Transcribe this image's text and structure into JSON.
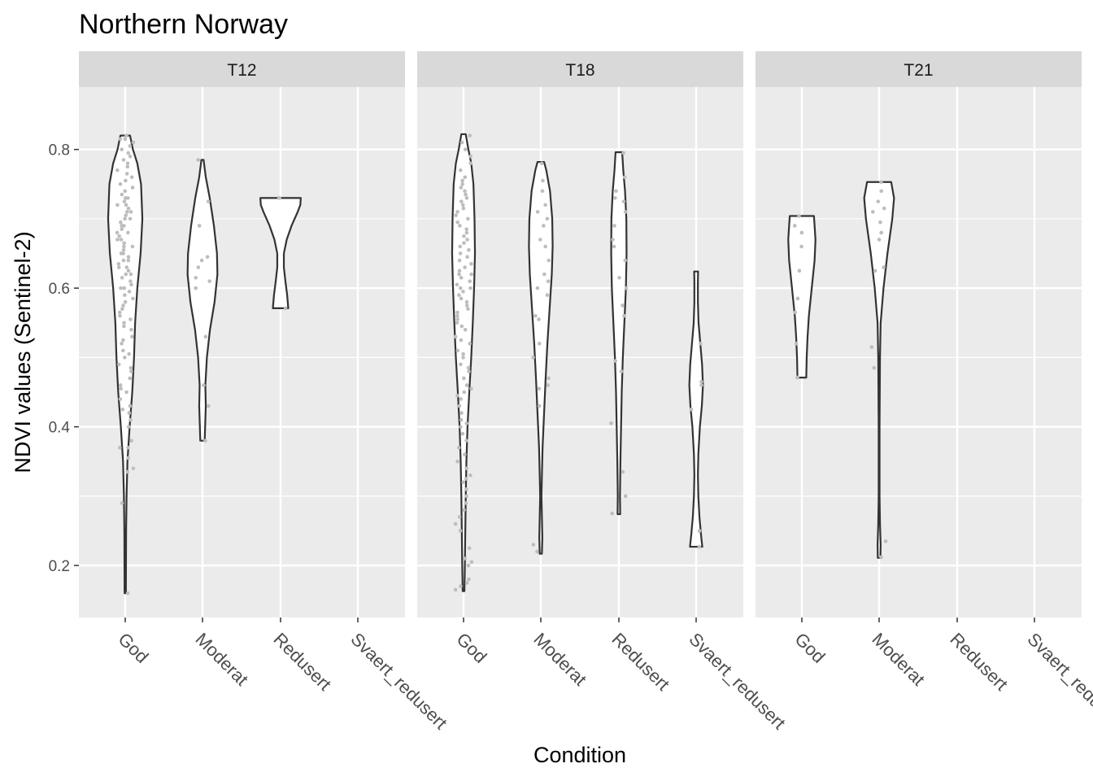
{
  "chart_data": {
    "type": "violin",
    "title": "Northern Norway",
    "xlabel": "Condition",
    "ylabel": "NDVI values (Sentinel-2)",
    "ylim": [
      0.125,
      0.89
    ],
    "y_ticks": [
      0.2,
      0.4,
      0.6,
      0.8
    ],
    "y_tick_labels": [
      "0.2",
      "0.4",
      "0.6",
      "0.8"
    ],
    "categories": [
      "God",
      "Moderat",
      "Redusert",
      "Svaert_redusert"
    ],
    "grid": true,
    "colors": {
      "panel_bg": "#ebebeb",
      "strip_bg": "#d9d9d9",
      "grid": "#ffffff",
      "violin_fill": "#ffffff",
      "violin_stroke": "#333333",
      "points": "#bdbdbd"
    },
    "panels": [
      {
        "name": "T12",
        "violins": [
          {
            "category": "God",
            "min": 0.16,
            "max": 0.82,
            "profile": [
              [
                0.16,
                0.03
              ],
              [
                0.25,
                0.04
              ],
              [
                0.3,
                0.06
              ],
              [
                0.35,
                0.1
              ],
              [
                0.4,
                0.2
              ],
              [
                0.45,
                0.32
              ],
              [
                0.5,
                0.4
              ],
              [
                0.55,
                0.45
              ],
              [
                0.6,
                0.55
              ],
              [
                0.65,
                0.7
              ],
              [
                0.7,
                0.78
              ],
              [
                0.75,
                0.72
              ],
              [
                0.78,
                0.55
              ],
              [
                0.8,
                0.35
              ],
              [
                0.82,
                0.22
              ]
            ]
          },
          {
            "category": "Moderat",
            "min": 0.38,
            "max": 0.785,
            "profile": [
              [
                0.38,
                0.1
              ],
              [
                0.4,
                0.12
              ],
              [
                0.43,
                0.15
              ],
              [
                0.46,
                0.13
              ],
              [
                0.5,
                0.2
              ],
              [
                0.54,
                0.34
              ],
              [
                0.58,
                0.55
              ],
              [
                0.62,
                0.68
              ],
              [
                0.65,
                0.66
              ],
              [
                0.69,
                0.52
              ],
              [
                0.73,
                0.33
              ],
              [
                0.76,
                0.15
              ],
              [
                0.785,
                0.05
              ]
            ]
          },
          {
            "category": "Redusert",
            "min": 0.571,
            "max": 0.73,
            "profile": [
              [
                0.571,
                0.35
              ],
              [
                0.59,
                0.3
              ],
              [
                0.61,
                0.22
              ],
              [
                0.63,
                0.15
              ],
              [
                0.65,
                0.15
              ],
              [
                0.67,
                0.28
              ],
              [
                0.69,
                0.5
              ],
              [
                0.71,
                0.78
              ],
              [
                0.72,
                0.9
              ],
              [
                0.73,
                0.92
              ]
            ]
          },
          {
            "category": "Svaert_redusert",
            "min": null,
            "max": null,
            "profile": []
          }
        ],
        "points": {
          "God": [
            0.16,
            0.29,
            0.335,
            0.34,
            0.355,
            0.37,
            0.37,
            0.38,
            0.4,
            0.41,
            0.42,
            0.425,
            0.43,
            0.44,
            0.45,
            0.455,
            0.46,
            0.47,
            0.48,
            0.485,
            0.49,
            0.5,
            0.505,
            0.51,
            0.52,
            0.525,
            0.53,
            0.54,
            0.545,
            0.55,
            0.555,
            0.56,
            0.565,
            0.57,
            0.575,
            0.58,
            0.585,
            0.59,
            0.595,
            0.6,
            0.6,
            0.605,
            0.61,
            0.615,
            0.62,
            0.62,
            0.625,
            0.63,
            0.63,
            0.635,
            0.64,
            0.64,
            0.645,
            0.65,
            0.65,
            0.655,
            0.66,
            0.66,
            0.665,
            0.67,
            0.67,
            0.675,
            0.68,
            0.68,
            0.685,
            0.69,
            0.69,
            0.695,
            0.7,
            0.7,
            0.705,
            0.71,
            0.71,
            0.715,
            0.72,
            0.72,
            0.725,
            0.73,
            0.73,
            0.735,
            0.74,
            0.745,
            0.75,
            0.755,
            0.76,
            0.765,
            0.77,
            0.775,
            0.78,
            0.785,
            0.79,
            0.795,
            0.8,
            0.805,
            0.81,
            0.815,
            0.815,
            0.82
          ],
          "Moderat": [
            0.38,
            0.43,
            0.46,
            0.53,
            0.6,
            0.61,
            0.615,
            0.63,
            0.64,
            0.645,
            0.69,
            0.725,
            0.785
          ],
          "Redusert": [
            0.571,
            0.73,
            0.73
          ],
          "Svaert_redusert": []
        }
      },
      {
        "name": "T18",
        "violins": [
          {
            "category": "God",
            "min": 0.163,
            "max": 0.822,
            "profile": [
              [
                0.163,
                0.04
              ],
              [
                0.2,
                0.06
              ],
              [
                0.25,
                0.08
              ],
              [
                0.3,
                0.1
              ],
              [
                0.35,
                0.13
              ],
              [
                0.4,
                0.18
              ],
              [
                0.45,
                0.26
              ],
              [
                0.5,
                0.35
              ],
              [
                0.55,
                0.42
              ],
              [
                0.6,
                0.48
              ],
              [
                0.65,
                0.52
              ],
              [
                0.7,
                0.5
              ],
              [
                0.75,
                0.45
              ],
              [
                0.78,
                0.35
              ],
              [
                0.8,
                0.22
              ],
              [
                0.822,
                0.1
              ]
            ]
          },
          {
            "category": "Moderat",
            "min": 0.217,
            "max": 0.782,
            "profile": [
              [
                0.217,
                0.05
              ],
              [
                0.24,
                0.07
              ],
              [
                0.27,
                0.05
              ],
              [
                0.3,
                0.03
              ],
              [
                0.33,
                0.05
              ],
              [
                0.37,
                0.08
              ],
              [
                0.42,
                0.15
              ],
              [
                0.47,
                0.22
              ],
              [
                0.52,
                0.3
              ],
              [
                0.57,
                0.4
              ],
              [
                0.62,
                0.5
              ],
              [
                0.66,
                0.54
              ],
              [
                0.7,
                0.52
              ],
              [
                0.74,
                0.42
              ],
              [
                0.77,
                0.25
              ],
              [
                0.782,
                0.15
              ]
            ]
          },
          {
            "category": "Redusert",
            "min": 0.274,
            "max": 0.796,
            "profile": [
              [
                0.274,
                0.06
              ],
              [
                0.3,
                0.05
              ],
              [
                0.35,
                0.07
              ],
              [
                0.4,
                0.1
              ],
              [
                0.45,
                0.13
              ],
              [
                0.5,
                0.18
              ],
              [
                0.55,
                0.25
              ],
              [
                0.6,
                0.32
              ],
              [
                0.65,
                0.35
              ],
              [
                0.7,
                0.34
              ],
              [
                0.74,
                0.28
              ],
              [
                0.77,
                0.2
              ],
              [
                0.796,
                0.15
              ]
            ]
          },
          {
            "category": "Svaert_redusert",
            "min": 0.227,
            "max": 0.624,
            "profile": [
              [
                0.227,
                0.28
              ],
              [
                0.245,
                0.22
              ],
              [
                0.27,
                0.15
              ],
              [
                0.3,
                0.1
              ],
              [
                0.33,
                0.08
              ],
              [
                0.36,
                0.1
              ],
              [
                0.4,
                0.17
              ],
              [
                0.43,
                0.26
              ],
              [
                0.46,
                0.31
              ],
              [
                0.49,
                0.27
              ],
              [
                0.52,
                0.19
              ],
              [
                0.55,
                0.11
              ],
              [
                0.58,
                0.08
              ],
              [
                0.61,
                0.08
              ],
              [
                0.624,
                0.09
              ]
            ]
          }
        ],
        "points": {
          "God": [
            0.165,
            0.17,
            0.175,
            0.18,
            0.2,
            0.205,
            0.21,
            0.225,
            0.25,
            0.26,
            0.27,
            0.28,
            0.29,
            0.3,
            0.31,
            0.32,
            0.325,
            0.33,
            0.34,
            0.35,
            0.36,
            0.37,
            0.38,
            0.39,
            0.4,
            0.405,
            0.41,
            0.42,
            0.43,
            0.44,
            0.445,
            0.45,
            0.455,
            0.46,
            0.47,
            0.48,
            0.485,
            0.49,
            0.5,
            0.505,
            0.51,
            0.52,
            0.525,
            0.53,
            0.54,
            0.545,
            0.55,
            0.555,
            0.56,
            0.565,
            0.57,
            0.575,
            0.58,
            0.585,
            0.59,
            0.595,
            0.6,
            0.6,
            0.605,
            0.61,
            0.615,
            0.62,
            0.62,
            0.625,
            0.63,
            0.635,
            0.64,
            0.645,
            0.65,
            0.655,
            0.66,
            0.665,
            0.67,
            0.675,
            0.68,
            0.685,
            0.69,
            0.695,
            0.7,
            0.705,
            0.71,
            0.715,
            0.72,
            0.725,
            0.73,
            0.735,
            0.74,
            0.745,
            0.75,
            0.755,
            0.76,
            0.77,
            0.78,
            0.79,
            0.8,
            0.81,
            0.82
          ],
          "Moderat": [
            0.22,
            0.23,
            0.43,
            0.455,
            0.46,
            0.47,
            0.5,
            0.52,
            0.555,
            0.56,
            0.59,
            0.6,
            0.61,
            0.62,
            0.64,
            0.66,
            0.67,
            0.69,
            0.7,
            0.71,
            0.72,
            0.74,
            0.755,
            0.78
          ],
          "Redusert": [
            0.275,
            0.3,
            0.335,
            0.405,
            0.48,
            0.495,
            0.56,
            0.575,
            0.6,
            0.615,
            0.64,
            0.66,
            0.67,
            0.69,
            0.71,
            0.725,
            0.73,
            0.74,
            0.76,
            0.795
          ],
          "Svaert_redusert": [
            0.227,
            0.25,
            0.425,
            0.46,
            0.465,
            0.52
          ]
        }
      },
      {
        "name": "T21",
        "violins": [
          {
            "category": "God",
            "min": 0.471,
            "max": 0.704,
            "profile": [
              [
                0.471,
                0.2
              ],
              [
                0.5,
                0.22
              ],
              [
                0.53,
                0.26
              ],
              [
                0.56,
                0.32
              ],
              [
                0.6,
                0.45
              ],
              [
                0.64,
                0.58
              ],
              [
                0.67,
                0.62
              ],
              [
                0.69,
                0.58
              ],
              [
                0.704,
                0.55
              ]
            ]
          },
          {
            "category": "Moderat",
            "min": 0.211,
            "max": 0.753,
            "profile": [
              [
                0.211,
                0.06
              ],
              [
                0.23,
                0.07
              ],
              [
                0.26,
                0.04
              ],
              [
                0.3,
                0.02
              ],
              [
                0.35,
                0.02
              ],
              [
                0.4,
                0.02
              ],
              [
                0.45,
                0.03
              ],
              [
                0.5,
                0.04
              ],
              [
                0.55,
                0.07
              ],
              [
                0.6,
                0.2
              ],
              [
                0.65,
                0.38
              ],
              [
                0.7,
                0.6
              ],
              [
                0.73,
                0.68
              ],
              [
                0.753,
                0.55
              ]
            ]
          },
          {
            "category": "Redusert",
            "min": null,
            "max": null,
            "profile": []
          },
          {
            "category": "Svaert_redusert",
            "min": null,
            "max": null,
            "profile": []
          }
        ],
        "points": {
          "God": [
            0.471,
            0.52,
            0.565,
            0.585,
            0.625,
            0.66,
            0.68,
            0.69,
            0.704
          ],
          "Moderat": [
            0.212,
            0.235,
            0.485,
            0.515,
            0.625,
            0.63,
            0.67,
            0.68,
            0.695,
            0.71,
            0.715,
            0.725,
            0.74,
            0.753
          ],
          "Redusert": [],
          "Svaert_redusert": []
        }
      }
    ]
  }
}
